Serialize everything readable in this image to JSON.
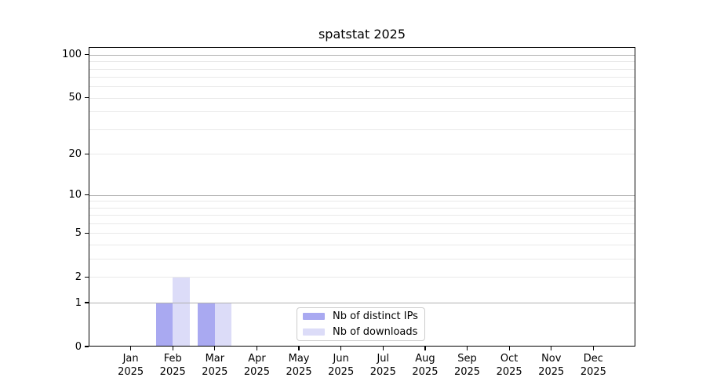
{
  "chart_data": {
    "type": "bar",
    "title": "spatstat 2025",
    "months": [
      "Jan",
      "Feb",
      "Mar",
      "Apr",
      "May",
      "Jun",
      "Jul",
      "Aug",
      "Sep",
      "Oct",
      "Nov",
      "Dec"
    ],
    "year": "2025",
    "series": [
      {
        "name": "Nb of distinct IPs",
        "color": "#a9a9f1",
        "values": [
          0,
          1,
          1,
          0,
          0,
          0,
          0,
          0,
          0,
          0,
          0,
          0
        ]
      },
      {
        "name": "Nb of downloads",
        "color": "#dcdcf8",
        "values": [
          0,
          2,
          1,
          0,
          0,
          0,
          0,
          0,
          0,
          0,
          0,
          0
        ]
      }
    ],
    "yscale": "log10(1+y)",
    "ylim": [
      0,
      113
    ],
    "y_tick_values": [
      0,
      1,
      2,
      5,
      10,
      20,
      50,
      100
    ],
    "y_major_gridlines": [
      1,
      10,
      100
    ],
    "y_minor_gridlines": [
      2,
      3,
      4,
      5,
      6,
      7,
      8,
      9,
      20,
      30,
      40,
      50,
      60,
      70,
      80,
      90
    ],
    "grid_major_color": "#b0b0b0",
    "grid_minor_color": "#e9e9e9",
    "legend_position": "lower center"
  }
}
